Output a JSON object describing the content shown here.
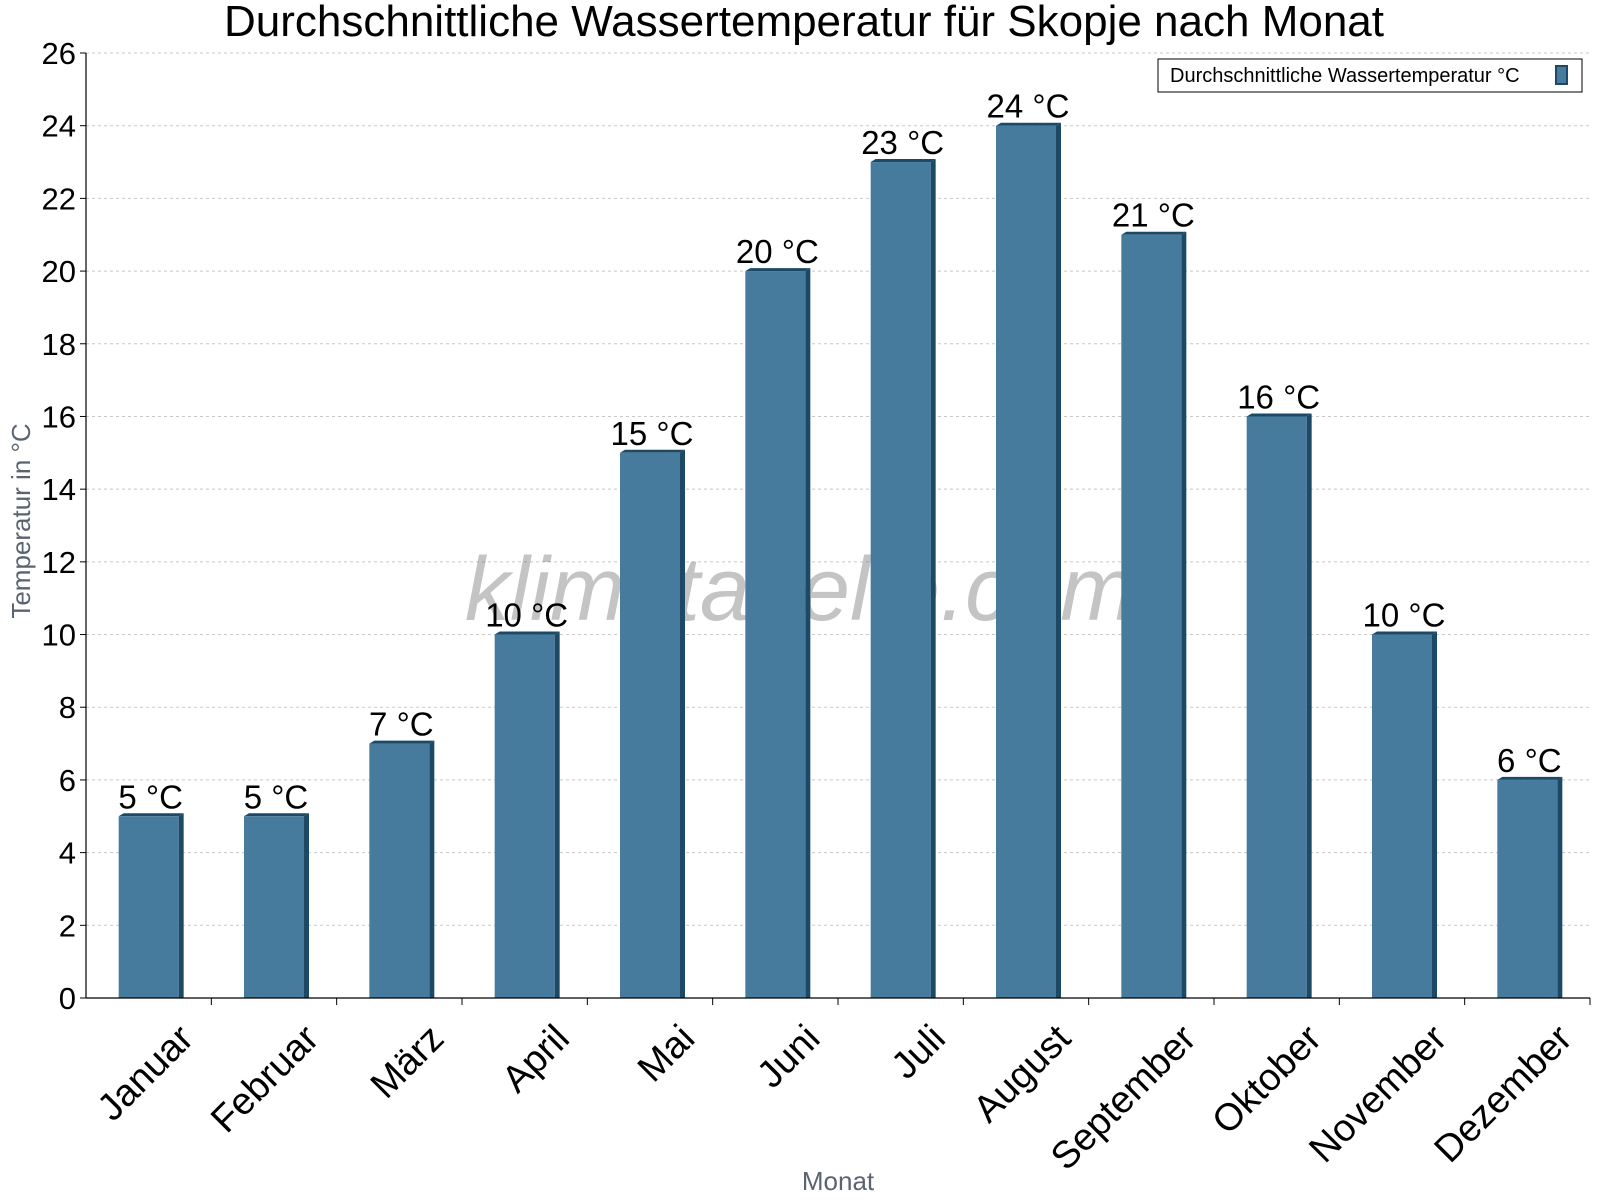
{
  "chart_data": {
    "type": "bar",
    "title": "Durchschnittliche Wassertemperatur für Skopje nach Monat",
    "xlabel": "Monat",
    "ylabel": "Temperatur in °C",
    "categories": [
      "Januar",
      "Februar",
      "März",
      "April",
      "Mai",
      "Juni",
      "Juli",
      "August",
      "September",
      "Oktober",
      "November",
      "Dezember"
    ],
    "series": [
      {
        "name": "Durchschnittliche Wassertemperatur °C",
        "values": [
          5,
          5,
          7,
          10,
          15,
          20,
          23,
          24,
          21,
          16,
          10,
          6
        ],
        "labels": [
          "5 °C",
          "5 °C",
          "7 °C",
          "10 °C",
          "15 °C",
          "20 °C",
          "23 °C",
          "24 °C",
          "21 °C",
          "16 °C",
          "10 °C",
          "6 °C"
        ],
        "color": "#467b9e"
      }
    ],
    "ylim": [
      0,
      26
    ],
    "yticks": [
      0,
      2,
      4,
      6,
      8,
      10,
      12,
      14,
      16,
      18,
      20,
      22,
      24,
      26
    ],
    "grid": true,
    "legend": "top-right",
    "colors": {
      "bar": "#467b9e",
      "bar_edge": "#1b4966",
      "grid": "#c8c8c8",
      "axis": "#000000"
    }
  },
  "watermark": "klimatabelle.com"
}
